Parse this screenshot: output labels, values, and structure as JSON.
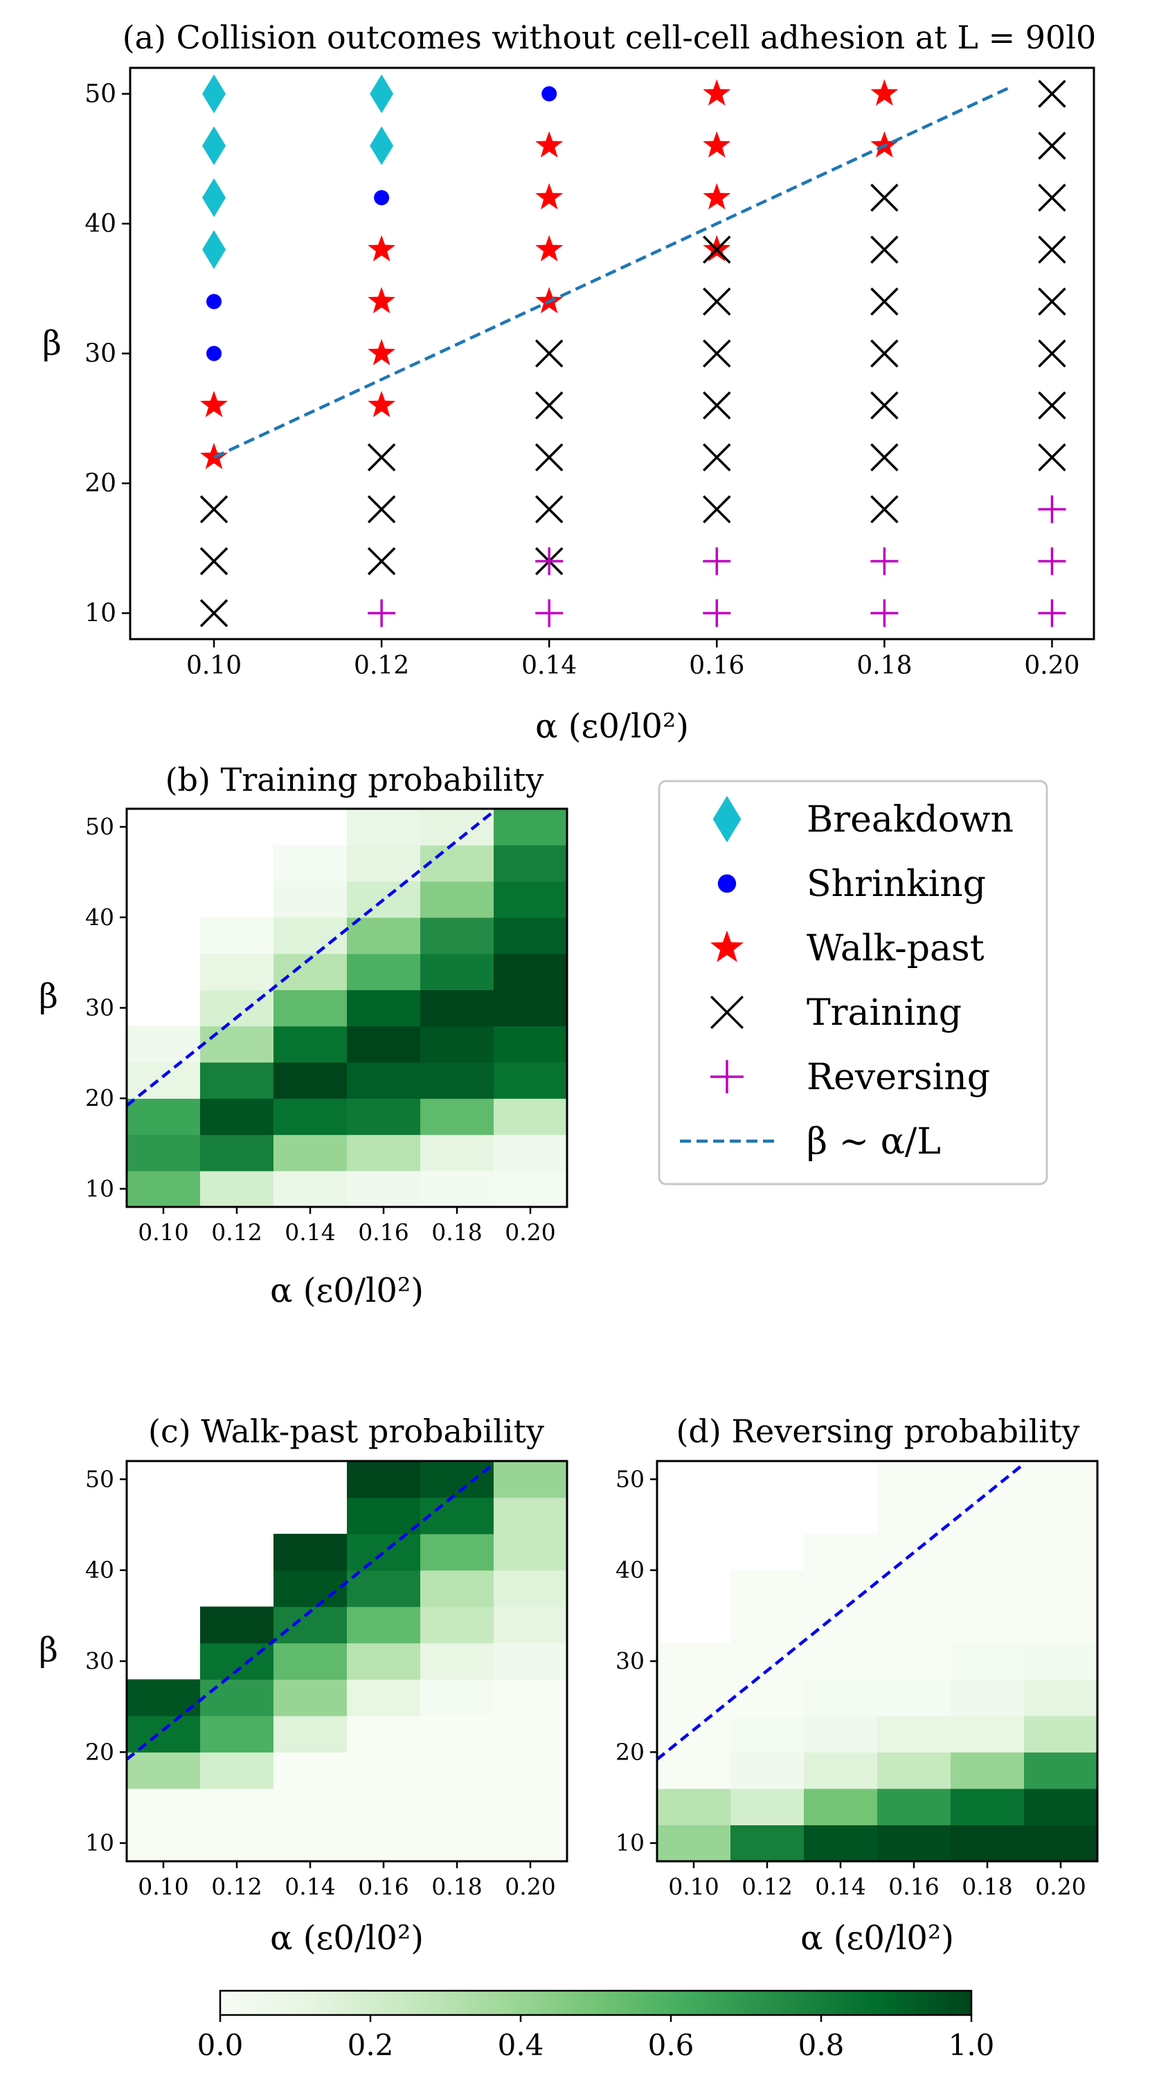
{
  "chart_data": [
    {
      "type": "scatter",
      "title": "(a) Collision outcomes without cell-cell adhesion at L = 90l0",
      "xlabel": "α (ε0/l0²)",
      "ylabel": "β",
      "xlim": [
        0.09,
        0.205
      ],
      "ylim": [
        8,
        52
      ],
      "xticks": [
        "0.10",
        "0.12",
        "0.14",
        "0.16",
        "0.18",
        "0.20"
      ],
      "yticks": [
        "10",
        "20",
        "30",
        "40",
        "50"
      ],
      "legend_position": "right of panel (b)",
      "series": [
        {
          "name": "Breakdown",
          "marker": "diamond",
          "color": "#17becf",
          "points": [
            [
              0.1,
              38
            ],
            [
              0.1,
              42
            ],
            [
              0.1,
              46
            ],
            [
              0.1,
              50
            ],
            [
              0.12,
              46
            ],
            [
              0.12,
              50
            ]
          ]
        },
        {
          "name": "Shrinking",
          "marker": "dot",
          "color": "#0000ff",
          "points": [
            [
              0.1,
              30
            ],
            [
              0.1,
              34
            ],
            [
              0.12,
              42
            ],
            [
              0.14,
              50
            ]
          ]
        },
        {
          "name": "Walk-past",
          "marker": "star",
          "color": "#ff0000",
          "points": [
            [
              0.1,
              22
            ],
            [
              0.1,
              26
            ],
            [
              0.12,
              26
            ],
            [
              0.12,
              30
            ],
            [
              0.12,
              34
            ],
            [
              0.12,
              38
            ],
            [
              0.14,
              34
            ],
            [
              0.14,
              38
            ],
            [
              0.14,
              42
            ],
            [
              0.14,
              46
            ],
            [
              0.16,
              38
            ],
            [
              0.16,
              42
            ],
            [
              0.16,
              46
            ],
            [
              0.16,
              50
            ],
            [
              0.18,
              46
            ],
            [
              0.18,
              50
            ]
          ]
        },
        {
          "name": "Training",
          "marker": "x",
          "color": "#000000",
          "points": [
            [
              0.1,
              10
            ],
            [
              0.1,
              14
            ],
            [
              0.1,
              18
            ],
            [
              0.12,
              14
            ],
            [
              0.12,
              18
            ],
            [
              0.12,
              22
            ],
            [
              0.14,
              14
            ],
            [
              0.14,
              18
            ],
            [
              0.14,
              22
            ],
            [
              0.14,
              26
            ],
            [
              0.14,
              30
            ],
            [
              0.16,
              18
            ],
            [
              0.16,
              22
            ],
            [
              0.16,
              26
            ],
            [
              0.16,
              30
            ],
            [
              0.16,
              34
            ],
            [
              0.16,
              38
            ],
            [
              0.18,
              18
            ],
            [
              0.18,
              22
            ],
            [
              0.18,
              26
            ],
            [
              0.18,
              30
            ],
            [
              0.18,
              34
            ],
            [
              0.18,
              38
            ],
            [
              0.18,
              42
            ],
            [
              0.2,
              22
            ],
            [
              0.2,
              26
            ],
            [
              0.2,
              30
            ],
            [
              0.2,
              34
            ],
            [
              0.2,
              38
            ],
            [
              0.2,
              42
            ],
            [
              0.2,
              46
            ],
            [
              0.2,
              50
            ]
          ]
        },
        {
          "name": "Reversing",
          "marker": "plus",
          "color": "#bf00bf",
          "points": [
            [
              0.12,
              10
            ],
            [
              0.14,
              10
            ],
            [
              0.14,
              14
            ],
            [
              0.16,
              10
            ],
            [
              0.16,
              14
            ],
            [
              0.18,
              10
            ],
            [
              0.18,
              14
            ],
            [
              0.2,
              10
            ],
            [
              0.2,
              14
            ],
            [
              0.2,
              18
            ]
          ]
        },
        {
          "name": "β ∼ α/L",
          "marker": "dashed-line",
          "color": "#1f77b4",
          "points": [
            [
              0.1,
              22
            ],
            [
              0.195,
              50.5
            ]
          ]
        }
      ]
    },
    {
      "type": "heatmap",
      "title": "(b) Training probability",
      "xlabel": "α (ε0/l0²)",
      "ylabel": "β",
      "x": [
        0.1,
        0.12,
        0.14,
        0.16,
        0.18,
        0.2
      ],
      "y": [
        10,
        14,
        18,
        22,
        26,
        30,
        34,
        38,
        42,
        46,
        50
      ],
      "xlim": [
        0.09,
        0.21
      ],
      "ylim": [
        8,
        52
      ],
      "xticks": [
        "0.10",
        "0.12",
        "0.14",
        "0.16",
        "0.18",
        "0.20"
      ],
      "yticks": [
        "10",
        "20",
        "30",
        "40",
        "50"
      ],
      "line": {
        "color": "#0000ee",
        "style": "dashed",
        "points": [
          [
            0.09,
            19.2
          ],
          [
            0.19,
            51.7
          ]
        ]
      },
      "z": [
        [
          0.55,
          0.2,
          0.08,
          0.05,
          0.03,
          0.02
        ],
        [
          0.7,
          0.8,
          0.4,
          0.3,
          0.12,
          0.05
        ],
        [
          0.65,
          0.95,
          0.85,
          0.82,
          0.55,
          0.25
        ],
        [
          0.1,
          0.8,
          1.0,
          0.92,
          0.92,
          0.85
        ],
        [
          0.05,
          0.35,
          0.85,
          1.0,
          0.95,
          0.9
        ],
        [
          null,
          0.18,
          0.55,
          0.9,
          1.0,
          1.0
        ],
        [
          null,
          0.1,
          0.3,
          0.6,
          0.82,
          1.0
        ],
        [
          null,
          0.02,
          0.15,
          0.45,
          0.75,
          0.92
        ],
        [
          null,
          null,
          0.05,
          0.2,
          0.45,
          0.85
        ],
        [
          null,
          null,
          0.02,
          0.12,
          0.3,
          0.8
        ],
        [
          null,
          null,
          null,
          0.08,
          0.12,
          0.65
        ]
      ]
    },
    {
      "type": "heatmap",
      "title": "(c) Walk-past probability",
      "xlabel": "α (ε0/l0²)",
      "ylabel": "β",
      "x": [
        0.1,
        0.12,
        0.14,
        0.16,
        0.18,
        0.2
      ],
      "y": [
        10,
        14,
        18,
        22,
        26,
        30,
        34,
        38,
        42,
        46,
        50
      ],
      "xlim": [
        0.09,
        0.21
      ],
      "ylim": [
        8,
        52
      ],
      "xticks": [
        "0.10",
        "0.12",
        "0.14",
        "0.16",
        "0.18",
        "0.20"
      ],
      "yticks": [
        "10",
        "20",
        "30",
        "40",
        "50"
      ],
      "line": {
        "color": "#0000ee",
        "style": "dashed",
        "points": [
          [
            0.09,
            19.2
          ],
          [
            0.19,
            51.7
          ]
        ]
      },
      "z": [
        [
          0.0,
          0.0,
          0.0,
          0.0,
          0.0,
          0.0
        ],
        [
          0.0,
          0.0,
          0.0,
          0.0,
          0.0,
          0.0
        ],
        [
          0.35,
          0.2,
          0.0,
          0.0,
          0.0,
          0.0
        ],
        [
          0.85,
          0.6,
          0.15,
          0.0,
          0.0,
          0.0
        ],
        [
          0.95,
          0.7,
          0.4,
          0.1,
          0.02,
          0.0
        ],
        [
          null,
          0.85,
          0.55,
          0.3,
          0.1,
          0.05
        ],
        [
          null,
          1.0,
          0.8,
          0.55,
          0.25,
          0.12
        ],
        [
          null,
          null,
          0.95,
          0.8,
          0.3,
          0.15
        ],
        [
          null,
          null,
          1.0,
          0.85,
          0.55,
          0.25
        ],
        [
          null,
          null,
          null,
          0.9,
          0.85,
          0.25
        ],
        [
          null,
          null,
          null,
          1.0,
          0.95,
          0.4
        ]
      ]
    },
    {
      "type": "heatmap",
      "title": "(d) Reversing probability",
      "xlabel": "α (ε0/l0²)",
      "ylabel": "",
      "x": [
        0.1,
        0.12,
        0.14,
        0.16,
        0.18,
        0.2
      ],
      "y": [
        10,
        14,
        18,
        22,
        26,
        30,
        34,
        38,
        42,
        46,
        50
      ],
      "xlim": [
        0.09,
        0.21
      ],
      "ylim": [
        8,
        52
      ],
      "xticks": [
        "0.10",
        "0.12",
        "0.14",
        "0.16",
        "0.18",
        "0.20"
      ],
      "yticks": [
        "10",
        "20",
        "30",
        "40",
        "50"
      ],
      "line": {
        "color": "#0000ee",
        "style": "dashed",
        "points": [
          [
            0.09,
            19.2
          ],
          [
            0.19,
            51.7
          ]
        ]
      },
      "z": [
        [
          0.4,
          0.8,
          0.95,
          0.98,
          1.0,
          1.0
        ],
        [
          0.3,
          0.2,
          0.5,
          0.7,
          0.85,
          0.95
        ],
        [
          0.0,
          0.05,
          0.15,
          0.25,
          0.4,
          0.7
        ],
        [
          0.0,
          0.02,
          0.05,
          0.1,
          0.1,
          0.25
        ],
        [
          0.0,
          0.0,
          0.02,
          0.02,
          0.05,
          0.12
        ],
        [
          0.0,
          0.0,
          0.0,
          0.0,
          0.02,
          0.03
        ],
        [
          null,
          0.0,
          0.0,
          0.0,
          0.0,
          0.0
        ],
        [
          null,
          0.0,
          0.0,
          0.0,
          0.0,
          0.0
        ],
        [
          null,
          null,
          0.0,
          0.0,
          0.0,
          0.0
        ],
        [
          null,
          null,
          null,
          0.0,
          0.0,
          0.0
        ],
        [
          null,
          null,
          null,
          0.0,
          0.0,
          0.0
        ]
      ]
    }
  ],
  "colorbar": {
    "colormap": "Greens",
    "range": [
      0,
      1
    ],
    "ticks": [
      "0.0",
      "0.2",
      "0.4",
      "0.6",
      "0.8",
      "1.0"
    ]
  }
}
